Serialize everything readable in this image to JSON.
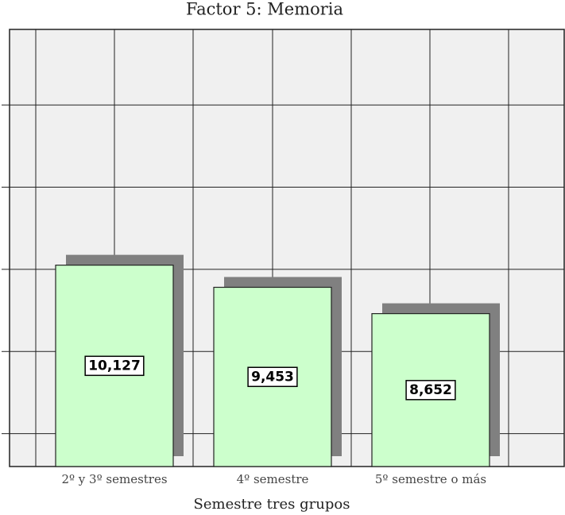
{
  "chart_data": {
    "type": "bar",
    "title": "Factor 5: Memoria",
    "x_label": "Semestre tres grupos",
    "categories": [
      "2º y 3º semestres",
      "4º semestre",
      "5º semestre o más"
    ],
    "values": [
      10.127,
      9.453,
      8.652
    ],
    "value_labels": [
      "10,127",
      "9,453",
      "8,652"
    ],
    "color": "#ccffcc",
    "shadow_color": "#808080",
    "ylim": [
      4,
      17.3
    ],
    "yticks": [
      5,
      7.5,
      10,
      12.5,
      15
    ],
    "grid": true
  }
}
